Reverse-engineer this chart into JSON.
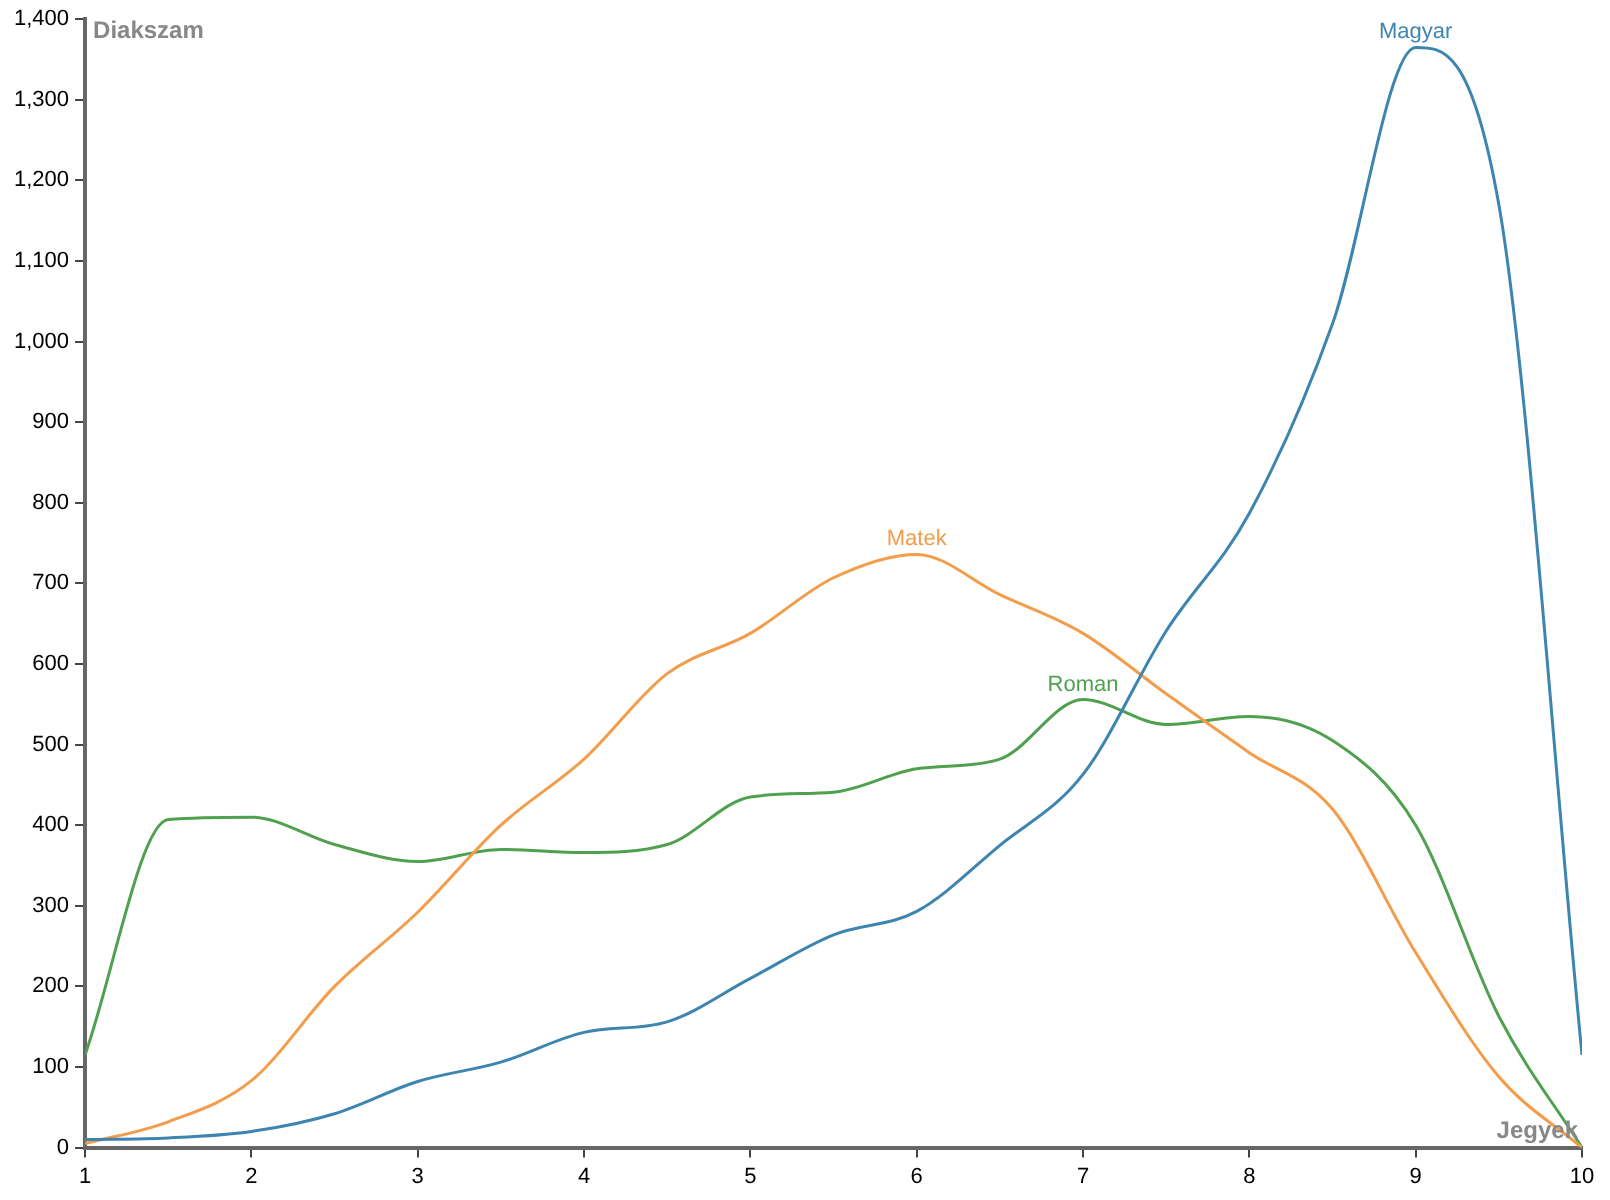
{
  "chart_data": {
    "type": "line",
    "xlabel": "Jegyek",
    "ylabel": "Diakszam",
    "x": [
      1,
      1.5,
      2,
      2.5,
      3,
      3.5,
      4,
      4.5,
      5,
      5.5,
      6,
      6.5,
      7,
      7.5,
      8,
      8.5,
      9,
      9.5,
      10
    ],
    "series": [
      {
        "name": "Magyar",
        "color": "#3d85b0",
        "values": [
          10,
          12,
          20,
          42,
          82,
          106,
          143,
          156,
          210,
          264,
          293,
          375,
          463,
          641,
          787,
          1022,
          1365,
          1170,
          115
        ]
      },
      {
        "name": "Matek",
        "color": "#f39c4a",
        "values": [
          5,
          32,
          83,
          200,
          292,
          400,
          482,
          588,
          638,
          707,
          736,
          686,
          638,
          563,
          490,
          420,
          242,
          88,
          0
        ]
      },
      {
        "name": "Roman",
        "color": "#50a14f",
        "values": [
          115,
          407,
          410,
          376,
          355,
          370,
          366,
          376,
          435,
          441,
          470,
          482,
          556,
          525,
          535,
          505,
          400,
          163,
          0
        ]
      }
    ],
    "xlim": [
      1,
      10
    ],
    "xticks": [
      1,
      2,
      3,
      4,
      5,
      6,
      7,
      8,
      9,
      10
    ],
    "ylim": [
      0,
      1400
    ],
    "yticks": [
      0,
      100,
      200,
      300,
      400,
      500,
      600,
      700,
      800,
      900,
      {
        "value": 1000,
        "label": "1,000"
      },
      {
        "value": 1100,
        "label": "1,100"
      },
      {
        "value": 1200,
        "label": "1,200"
      },
      {
        "value": 1300,
        "label": "1,300"
      },
      {
        "value": 1400,
        "label": "1,400"
      }
    ],
    "grid": false,
    "legend": false,
    "marker": "none",
    "line_style": "solid"
  }
}
